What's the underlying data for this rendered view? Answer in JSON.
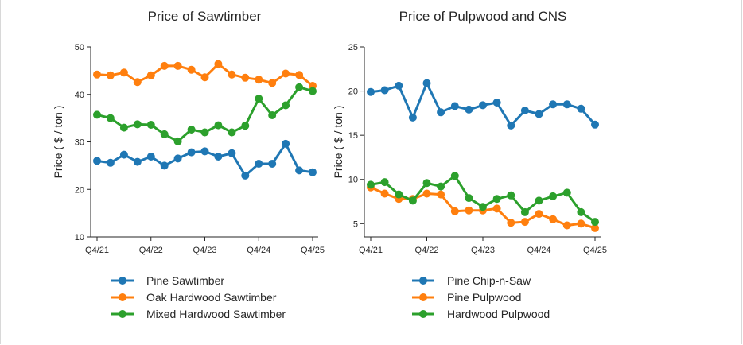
{
  "colors": {
    "blue": "#1f77b4",
    "orange": "#ff7f0e",
    "green": "#2ca02c"
  },
  "chart_data": [
    {
      "type": "line",
      "title": "Price of Sawtimber",
      "ylabel": "Price ( $ / ton )",
      "xlabel": "",
      "ylim": [
        10,
        50
      ],
      "yticks": [
        10,
        20,
        30,
        40,
        50
      ],
      "xtick_labels": [
        "Q4/21",
        "Q4/22",
        "Q4/23",
        "Q4/24",
        "Q4/25"
      ],
      "xtick_index": [
        0,
        4,
        8,
        12,
        16
      ],
      "n_points": 17,
      "legend_position": "bottom",
      "series": [
        {
          "name": "Pine Sawtimber",
          "color": "#1f77b4",
          "values": [
            26.0,
            25.6,
            27.3,
            25.8,
            26.9,
            25.0,
            26.5,
            27.8,
            28.0,
            26.9,
            27.6,
            22.9,
            25.4,
            25.4,
            29.6,
            24.0,
            23.6
          ]
        },
        {
          "name": "Oak Hardwood Sawtimber",
          "color": "#ff7f0e",
          "values": [
            44.2,
            44.0,
            44.6,
            42.6,
            44.0,
            46.0,
            46.0,
            45.2,
            43.6,
            46.4,
            44.2,
            43.5,
            43.1,
            42.4,
            44.4,
            44.1,
            41.8
          ]
        },
        {
          "name": "Mixed Hardwood Sawtimber",
          "color": "#2ca02c",
          "values": [
            35.7,
            35.0,
            33.0,
            33.7,
            33.6,
            31.6,
            30.1,
            32.6,
            32.0,
            33.5,
            32.0,
            33.4,
            39.1,
            35.6,
            37.7,
            41.5,
            40.7
          ]
        }
      ]
    },
    {
      "type": "line",
      "title": "Price of Pulpwood and CNS",
      "ylabel": "Price ( $ / ton )",
      "xlabel": "",
      "ylim": [
        3.5,
        25
      ],
      "yticks": [
        5,
        10,
        15,
        20,
        25
      ],
      "xtick_labels": [
        "Q4/21",
        "Q4/22",
        "Q4/23",
        "Q4/24",
        "Q4/25"
      ],
      "xtick_index": [
        0,
        4,
        8,
        12,
        16
      ],
      "n_points": 17,
      "legend_position": "bottom",
      "series": [
        {
          "name": "Pine Chip-n-Saw",
          "color": "#1f77b4",
          "values": [
            19.9,
            20.1,
            20.6,
            17.0,
            20.9,
            17.6,
            18.3,
            17.9,
            18.4,
            18.7,
            16.1,
            17.8,
            17.4,
            18.5,
            18.5,
            18.0,
            16.2
          ]
        },
        {
          "name": "Pine Pulpwood",
          "color": "#ff7f0e",
          "values": [
            9.1,
            8.4,
            7.8,
            7.8,
            8.4,
            8.3,
            6.4,
            6.5,
            6.5,
            6.7,
            5.1,
            5.2,
            6.1,
            5.5,
            4.8,
            5.0,
            4.5
          ]
        },
        {
          "name": "Hardwood Pulpwood",
          "color": "#2ca02c",
          "values": [
            9.4,
            9.7,
            8.3,
            7.6,
            9.6,
            9.2,
            10.4,
            7.9,
            6.9,
            7.8,
            8.2,
            6.3,
            7.6,
            8.1,
            8.5,
            6.3,
            5.2
          ]
        }
      ]
    }
  ]
}
